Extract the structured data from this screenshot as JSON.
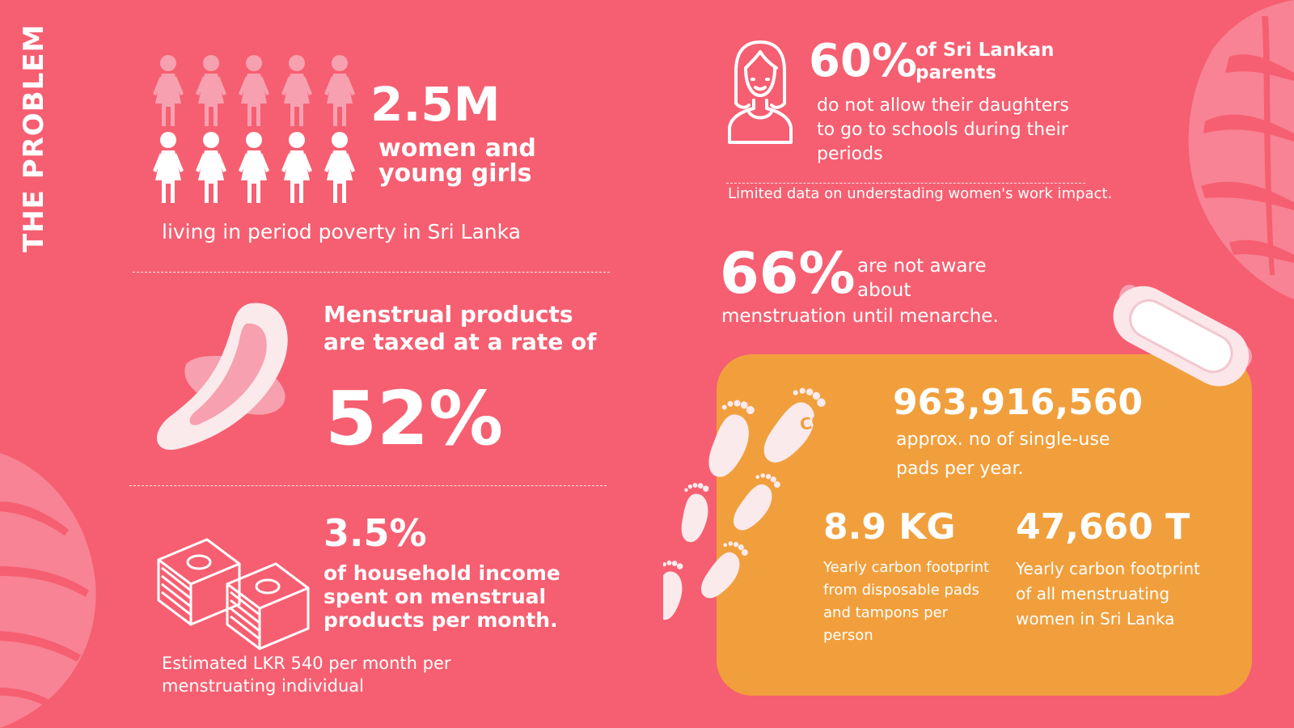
{
  "section_title": "THE PROBLEM",
  "colors": {
    "background": "#f65f71",
    "card": "#f19f3c",
    "text": "#ffffff",
    "accent_pink": "#f7a1b0"
  },
  "women": {
    "value": "2.5M",
    "label": "women and young girls",
    "caption": "living in period poverty in Sri Lanka",
    "icon": "women-group-icon"
  },
  "tax": {
    "label": "Menstrual products are taxed at a rate of",
    "value": "52%",
    "icon": "sanitary-pad-icon"
  },
  "income": {
    "value": "3.5%",
    "label": "of household income spent on menstrual products per month.",
    "note": "Estimated LKR 540 per month per menstruating individual",
    "icon": "money-stack-icon"
  },
  "parents": {
    "value": "60%",
    "label": "of Sri Lankan parents",
    "description": "do not allow their daughters to go to schools during their periods",
    "note": "Limited data on understading women's work impact.",
    "icon": "girl-icon"
  },
  "awareness": {
    "value": "66%",
    "label": "are not aware about",
    "description": "menstruation until menarche."
  },
  "pads": {
    "value": "963,916,560",
    "description": "approx. no of single-use pads per year.",
    "footprint_icon": "co2-footprint-icon"
  },
  "per_person": {
    "value": "8.9 KG",
    "description": "Yearly carbon footprint from disposable pads and tampons per person"
  },
  "all_women": {
    "value": "47,660 T",
    "description": "Yearly carbon footprint of all menstruating women in Sri Lanka"
  }
}
